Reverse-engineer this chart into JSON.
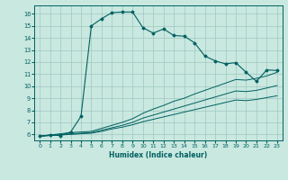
{
  "title": "",
  "xlabel": "Humidex (Indice chaleur)",
  "xlim": [
    -0.5,
    23.5
  ],
  "ylim": [
    5.5,
    16.7
  ],
  "xticks": [
    0,
    1,
    2,
    3,
    4,
    5,
    6,
    7,
    8,
    9,
    10,
    11,
    12,
    13,
    14,
    15,
    16,
    17,
    18,
    19,
    20,
    21,
    22,
    23
  ],
  "yticks": [
    6,
    7,
    8,
    9,
    10,
    11,
    12,
    13,
    14,
    15,
    16
  ],
  "background_color": "#c8e8e0",
  "grid_color": "#a0c8c0",
  "line_color": "#006060",
  "line1_x": [
    0,
    1,
    2,
    3,
    4,
    5,
    6,
    7,
    8,
    9,
    10,
    11,
    12,
    13,
    14,
    15,
    16,
    17,
    18,
    19,
    20,
    21,
    22,
    23
  ],
  "line1_y": [
    5.85,
    5.95,
    5.9,
    6.2,
    7.5,
    15.0,
    15.6,
    16.1,
    16.15,
    16.15,
    14.85,
    14.4,
    14.75,
    14.2,
    14.15,
    13.6,
    12.5,
    12.1,
    11.85,
    11.95,
    11.15,
    10.4,
    11.35,
    11.3
  ],
  "line2_x": [
    0,
    3,
    4,
    5,
    6,
    7,
    8,
    9,
    10,
    11,
    12,
    13,
    14,
    15,
    16,
    17,
    18,
    19,
    20,
    21,
    22,
    23
  ],
  "line2_y": [
    5.85,
    6.15,
    6.2,
    6.25,
    6.5,
    6.75,
    7.0,
    7.3,
    7.75,
    8.1,
    8.4,
    8.75,
    9.0,
    9.35,
    9.65,
    9.95,
    10.25,
    10.55,
    10.5,
    10.65,
    10.85,
    11.15
  ],
  "line3_x": [
    0,
    3,
    4,
    5,
    6,
    7,
    8,
    9,
    10,
    11,
    12,
    13,
    14,
    15,
    16,
    17,
    18,
    19,
    20,
    21,
    22,
    23
  ],
  "line3_y": [
    5.85,
    6.05,
    6.1,
    6.15,
    6.35,
    6.55,
    6.75,
    7.0,
    7.35,
    7.6,
    7.85,
    8.1,
    8.35,
    8.6,
    8.85,
    9.1,
    9.35,
    9.6,
    9.55,
    9.65,
    9.85,
    10.05
  ],
  "line4_x": [
    0,
    3,
    4,
    5,
    6,
    7,
    8,
    9,
    10,
    11,
    12,
    13,
    14,
    15,
    16,
    17,
    18,
    19,
    20,
    21,
    22,
    23
  ],
  "line4_y": [
    5.85,
    6.0,
    6.05,
    6.1,
    6.25,
    6.45,
    6.6,
    6.8,
    7.05,
    7.25,
    7.45,
    7.65,
    7.85,
    8.05,
    8.25,
    8.45,
    8.65,
    8.85,
    8.8,
    8.9,
    9.05,
    9.2
  ]
}
